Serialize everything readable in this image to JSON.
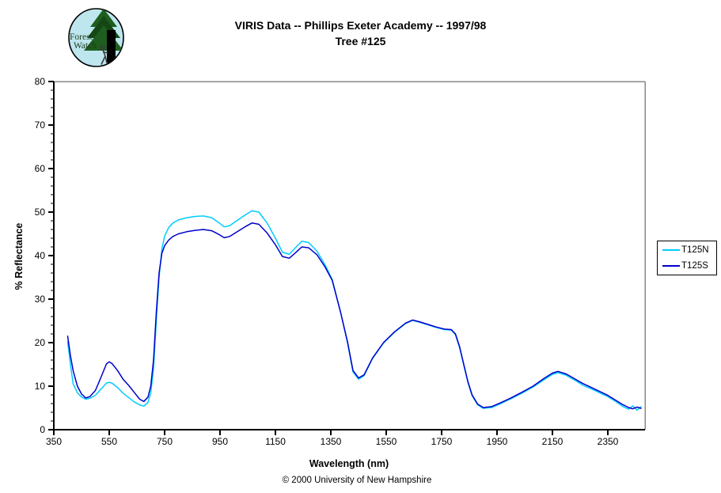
{
  "header": {
    "title_line1": "VIRIS Data -- Phillips Exeter Academy -- 1997/98",
    "title_line2": "Tree #125"
  },
  "logo": {
    "line1": "Forest",
    "line2": "Watch",
    "bg_color": "#BEE6EE",
    "tree_color": "#1E5E1E",
    "tree_color_dark": "#154715",
    "text_color": "#1B3A1B"
  },
  "footer": {
    "copyright": "© 2000 University of New Hampshire"
  },
  "chart_data": {
    "type": "line",
    "title": "VIRIS Data -- Phillips Exeter Academy -- 1997/98  Tree #125",
    "xlabel": "Wavelength (nm)",
    "ylabel": "% Reflectance",
    "xlim": [
      350,
      2484
    ],
    "ylim": [
      0,
      80
    ],
    "x_ticks": [
      350,
      550,
      750,
      950,
      1150,
      1350,
      1550,
      1750,
      1950,
      2150,
      2350
    ],
    "y_ticks": [
      0,
      10,
      20,
      30,
      40,
      50,
      60,
      70,
      80
    ],
    "y_minor_tick_step": 2,
    "grid": false,
    "legend_position": "right-outside",
    "axis_color": "#000000",
    "border_color": "#888888",
    "series": [
      {
        "name": "T125N",
        "color": "#00CCFF",
        "points": [
          [
            400,
            20.2
          ],
          [
            410,
            15.0
          ],
          [
            420,
            10.5
          ],
          [
            435,
            8.5
          ],
          [
            450,
            7.5
          ],
          [
            465,
            7.0
          ],
          [
            480,
            7.2
          ],
          [
            500,
            7.9
          ],
          [
            520,
            9.3
          ],
          [
            540,
            10.7
          ],
          [
            550,
            10.9
          ],
          [
            560,
            10.7
          ],
          [
            580,
            9.7
          ],
          [
            600,
            8.4
          ],
          [
            620,
            7.4
          ],
          [
            640,
            6.4
          ],
          [
            660,
            5.7
          ],
          [
            675,
            5.4
          ],
          [
            690,
            6.3
          ],
          [
            700,
            8.5
          ],
          [
            710,
            14.0
          ],
          [
            720,
            25.0
          ],
          [
            730,
            35.0
          ],
          [
            740,
            41.5
          ],
          [
            750,
            44.5
          ],
          [
            765,
            46.5
          ],
          [
            780,
            47.5
          ],
          [
            800,
            48.2
          ],
          [
            830,
            48.7
          ],
          [
            860,
            49.0
          ],
          [
            890,
            49.1
          ],
          [
            920,
            48.7
          ],
          [
            945,
            47.6
          ],
          [
            965,
            46.6
          ],
          [
            985,
            46.9
          ],
          [
            1010,
            48.0
          ],
          [
            1040,
            49.3
          ],
          [
            1065,
            50.3
          ],
          [
            1090,
            50.0
          ],
          [
            1120,
            47.5
          ],
          [
            1150,
            44.0
          ],
          [
            1175,
            40.8
          ],
          [
            1200,
            40.3
          ],
          [
            1225,
            42.0
          ],
          [
            1245,
            43.3
          ],
          [
            1270,
            43.0
          ],
          [
            1300,
            41.0
          ],
          [
            1330,
            37.8
          ],
          [
            1355,
            34.5
          ],
          [
            1385,
            27.0
          ],
          [
            1410,
            20.0
          ],
          [
            1430,
            13.3
          ],
          [
            1450,
            11.6
          ],
          [
            1470,
            12.4
          ],
          [
            1500,
            16.3
          ],
          [
            1540,
            19.9
          ],
          [
            1580,
            22.4
          ],
          [
            1620,
            24.4
          ],
          [
            1645,
            25.1
          ],
          [
            1670,
            24.7
          ],
          [
            1700,
            24.1
          ],
          [
            1730,
            23.5
          ],
          [
            1760,
            23.0
          ],
          [
            1785,
            22.9
          ],
          [
            1800,
            21.8
          ],
          [
            1815,
            18.8
          ],
          [
            1830,
            14.8
          ],
          [
            1845,
            10.8
          ],
          [
            1860,
            7.8
          ],
          [
            1880,
            5.7
          ],
          [
            1900,
            4.9
          ],
          [
            1930,
            5.1
          ],
          [
            1960,
            5.9
          ],
          [
            2000,
            7.1
          ],
          [
            2040,
            8.4
          ],
          [
            2080,
            9.8
          ],
          [
            2120,
            11.5
          ],
          [
            2150,
            12.7
          ],
          [
            2170,
            13.1
          ],
          [
            2200,
            12.5
          ],
          [
            2230,
            11.4
          ],
          [
            2260,
            10.2
          ],
          [
            2290,
            9.4
          ],
          [
            2320,
            8.5
          ],
          [
            2350,
            7.6
          ],
          [
            2380,
            6.4
          ],
          [
            2405,
            5.3
          ],
          [
            2425,
            4.7
          ],
          [
            2440,
            5.5
          ],
          [
            2455,
            4.5
          ],
          [
            2470,
            5.3
          ]
        ]
      },
      {
        "name": "T125S",
        "color": "#0000CC",
        "points": [
          [
            400,
            21.5
          ],
          [
            410,
            17.0
          ],
          [
            420,
            13.5
          ],
          [
            435,
            10.0
          ],
          [
            450,
            8.2
          ],
          [
            465,
            7.3
          ],
          [
            480,
            7.6
          ],
          [
            500,
            9.0
          ],
          [
            520,
            12.0
          ],
          [
            540,
            15.1
          ],
          [
            550,
            15.6
          ],
          [
            560,
            15.2
          ],
          [
            580,
            13.6
          ],
          [
            600,
            11.6
          ],
          [
            620,
            10.2
          ],
          [
            640,
            8.6
          ],
          [
            660,
            7.0
          ],
          [
            675,
            6.5
          ],
          [
            690,
            7.5
          ],
          [
            700,
            10.0
          ],
          [
            710,
            16.0
          ],
          [
            720,
            27.0
          ],
          [
            730,
            36.0
          ],
          [
            740,
            40.5
          ],
          [
            750,
            42.3
          ],
          [
            765,
            43.6
          ],
          [
            780,
            44.4
          ],
          [
            800,
            45.0
          ],
          [
            830,
            45.5
          ],
          [
            860,
            45.8
          ],
          [
            890,
            46.0
          ],
          [
            920,
            45.7
          ],
          [
            945,
            44.9
          ],
          [
            965,
            44.1
          ],
          [
            985,
            44.4
          ],
          [
            1010,
            45.4
          ],
          [
            1040,
            46.6
          ],
          [
            1065,
            47.5
          ],
          [
            1090,
            47.2
          ],
          [
            1120,
            45.2
          ],
          [
            1150,
            42.5
          ],
          [
            1175,
            39.8
          ],
          [
            1200,
            39.4
          ],
          [
            1225,
            40.8
          ],
          [
            1245,
            42.0
          ],
          [
            1270,
            41.8
          ],
          [
            1300,
            40.2
          ],
          [
            1330,
            37.3
          ],
          [
            1355,
            34.3
          ],
          [
            1385,
            27.0
          ],
          [
            1410,
            20.3
          ],
          [
            1430,
            13.6
          ],
          [
            1450,
            11.9
          ],
          [
            1470,
            12.6
          ],
          [
            1500,
            16.4
          ],
          [
            1540,
            20.0
          ],
          [
            1580,
            22.5
          ],
          [
            1620,
            24.5
          ],
          [
            1645,
            25.2
          ],
          [
            1670,
            24.8
          ],
          [
            1700,
            24.2
          ],
          [
            1730,
            23.6
          ],
          [
            1760,
            23.1
          ],
          [
            1785,
            23.0
          ],
          [
            1800,
            22.0
          ],
          [
            1815,
            19.0
          ],
          [
            1830,
            15.0
          ],
          [
            1845,
            11.0
          ],
          [
            1860,
            8.0
          ],
          [
            1880,
            5.9
          ],
          [
            1900,
            5.1
          ],
          [
            1930,
            5.3
          ],
          [
            1960,
            6.1
          ],
          [
            2000,
            7.3
          ],
          [
            2040,
            8.6
          ],
          [
            2080,
            10.0
          ],
          [
            2120,
            11.8
          ],
          [
            2150,
            13.0
          ],
          [
            2170,
            13.4
          ],
          [
            2200,
            12.8
          ],
          [
            2230,
            11.7
          ],
          [
            2260,
            10.6
          ],
          [
            2290,
            9.7
          ],
          [
            2320,
            8.8
          ],
          [
            2350,
            7.9
          ],
          [
            2380,
            6.7
          ],
          [
            2405,
            5.7
          ],
          [
            2425,
            5.1
          ],
          [
            2440,
            4.8
          ],
          [
            2455,
            5.2
          ],
          [
            2470,
            4.9
          ]
        ]
      }
    ]
  }
}
